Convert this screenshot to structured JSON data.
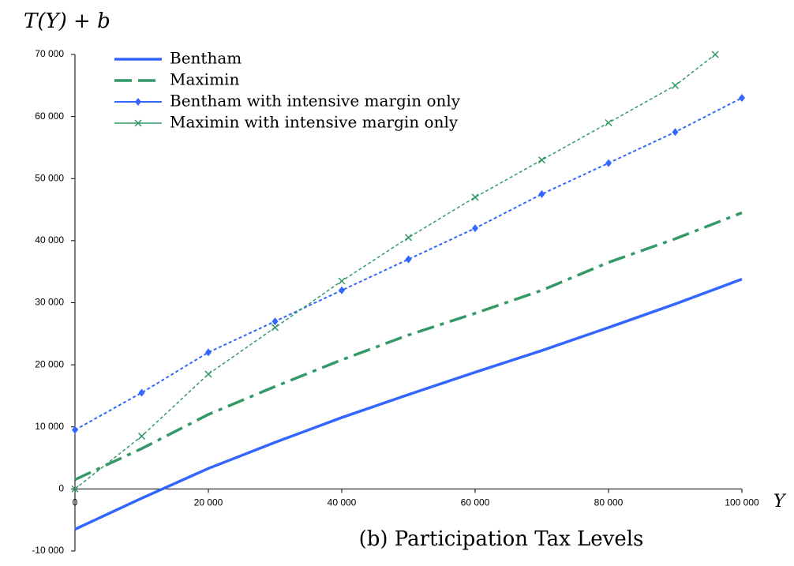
{
  "chart_data": {
    "type": "line",
    "y_label": "T(Y) + b",
    "x_label": "Y",
    "subtitle": "(b) Participation Tax Levels",
    "x": [
      0,
      10000,
      20000,
      30000,
      40000,
      50000,
      60000,
      70000,
      80000,
      90000,
      100000
    ],
    "xlim": [
      0,
      100000
    ],
    "xticks": [
      0,
      {
        "value": 20000,
        "label": "20 000"
      },
      {
        "value": 40000,
        "label": "40 000"
      },
      {
        "value": 60000,
        "label": "60 000"
      },
      {
        "value": 80000,
        "label": "80 000"
      },
      {
        "value": 100000,
        "label": "100 000"
      }
    ],
    "ylim": [
      -10000,
      70000
    ],
    "yticks": [
      {
        "value": -10000,
        "label": "-10 000"
      },
      0,
      {
        "value": 10000,
        "label": "10 000"
      },
      {
        "value": 20000,
        "label": "20 000"
      },
      {
        "value": 30000,
        "label": "30 000"
      },
      {
        "value": 40000,
        "label": "40 000"
      },
      {
        "value": 50000,
        "label": "50 000"
      },
      {
        "value": 60000,
        "label": "60 000"
      },
      {
        "value": 70000,
        "label": "70 000"
      }
    ],
    "grid": false,
    "legend": "top-left",
    "series": [
      {
        "name": "Bentham",
        "color": "#3366ff",
        "style": "solid",
        "values": [
          -6500,
          -1500,
          3300,
          7500,
          11500,
          15200,
          18800,
          22300,
          26000,
          29800,
          33800
        ]
      },
      {
        "name": "Maximin",
        "color": "#339966",
        "style": "dashdot",
        "values": [
          1500,
          6500,
          12000,
          16500,
          20800,
          24800,
          28300,
          32000,
          36500,
          40300,
          44500
        ]
      },
      {
        "name": "Bentham with intensive margin only",
        "color": "#3366ff",
        "style": "diamond",
        "values": [
          9500,
          15500,
          22000,
          27000,
          32000,
          37000,
          42000,
          47500,
          52500,
          57500,
          63000
        ]
      },
      {
        "name": "Maximin with intensive margin only",
        "color": "#339966",
        "style": "cross",
        "x": [
          0,
          10000,
          20000,
          30000,
          40000,
          50000,
          60000,
          70000,
          80000,
          90000,
          96000
        ],
        "values": [
          0,
          8500,
          18500,
          26000,
          33500,
          40500,
          47000,
          53000,
          59000,
          65000,
          70000
        ]
      }
    ]
  }
}
